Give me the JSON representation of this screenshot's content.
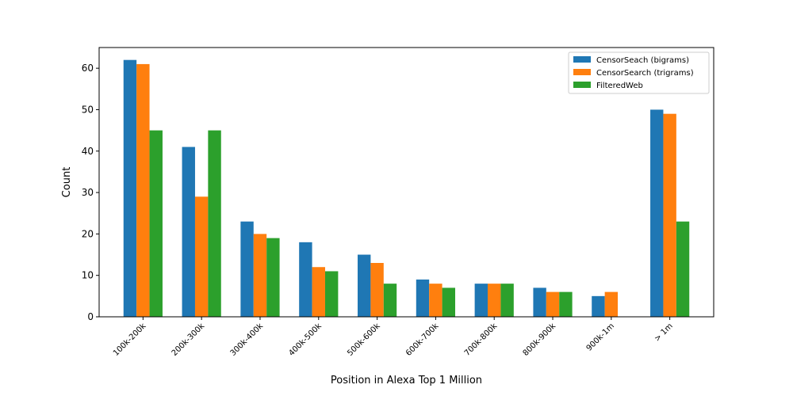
{
  "chart_data": {
    "type": "bar",
    "title": "",
    "xlabel": "Position in Alexa Top 1 Million",
    "ylabel": "Count",
    "ylim": [
      0,
      65
    ],
    "yticks": [
      0,
      10,
      20,
      30,
      40,
      50,
      60
    ],
    "grid": false,
    "legend_position": "top-right",
    "categories": [
      "100k-200k",
      "200k-300k",
      "300k-400k",
      "400k-500k",
      "500k-600k",
      "600k-700k",
      "700k-800k",
      "800k-900k",
      "900k-1m",
      "> 1m"
    ],
    "series": [
      {
        "name": "CensorSeach (bigrams)",
        "color": "#1f77b4",
        "values": [
          62,
          41,
          23,
          18,
          15,
          9,
          8,
          7,
          5,
          50
        ]
      },
      {
        "name": "CensorSearch (trigrams)",
        "color": "#ff7f0e",
        "values": [
          61,
          29,
          20,
          12,
          13,
          8,
          8,
          6,
          6,
          49
        ]
      },
      {
        "name": "FilteredWeb",
        "color": "#2ca02c",
        "values": [
          45,
          45,
          19,
          11,
          8,
          7,
          8,
          6,
          0,
          23
        ]
      }
    ]
  }
}
